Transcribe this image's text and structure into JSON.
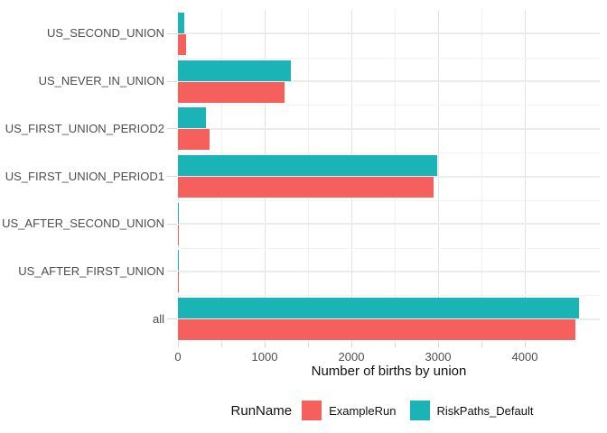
{
  "chart_data": {
    "type": "bar",
    "orientation": "horizontal",
    "title": "",
    "xlabel": "Number of births by union",
    "ylabel": "",
    "categories": [
      "US_SECOND_UNION",
      "US_NEVER_IN_UNION",
      "US_FIRST_UNION_PERIOD2",
      "US_FIRST_UNION_PERIOD1",
      "US_AFTER_SECOND_UNION",
      "US_AFTER_FIRST_UNION",
      "all"
    ],
    "series": [
      {
        "name": "ExampleRun",
        "color": "#F5605C",
        "values": [
          90,
          1230,
          360,
          2950,
          10,
          10,
          4580
        ]
      },
      {
        "name": "RiskPaths_Default",
        "color": "#1AB4B6",
        "values": [
          70,
          1300,
          320,
          2990,
          10,
          10,
          4630
        ]
      }
    ],
    "bar_order_top_to_bottom": [
      "RiskPaths_Default",
      "ExampleRun"
    ],
    "x_ticks": [
      0,
      1000,
      2000,
      3000,
      4000
    ],
    "x_minor_step": 500,
    "xlim": [
      0,
      4860
    ],
    "grid": true,
    "legend": {
      "title": "RunName",
      "position": "bottom",
      "entries": [
        {
          "label": "ExampleRun",
          "color": "#F5605C"
        },
        {
          "label": "RiskPaths_Default",
          "color": "#1AB4B6"
        }
      ]
    }
  }
}
